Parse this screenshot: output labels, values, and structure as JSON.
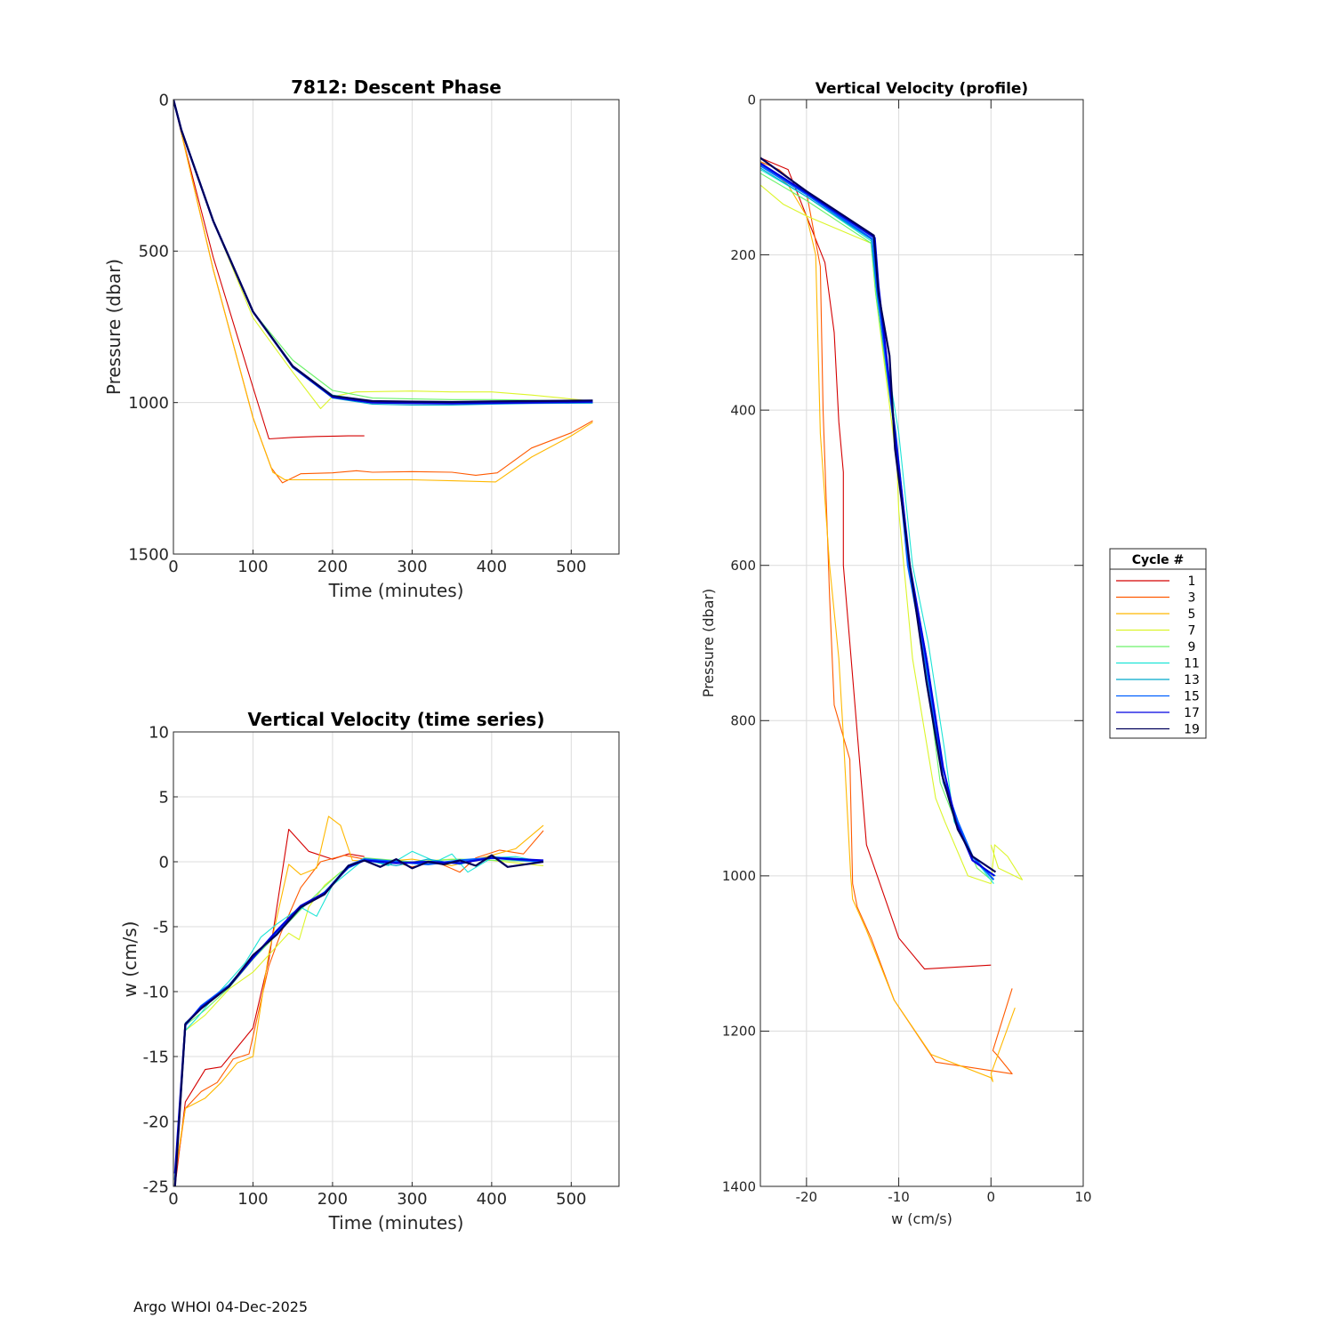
{
  "footer": "Argo WHOI 04-Dec-2025",
  "legend": {
    "title": "Cycle #",
    "entries": [
      {
        "label": "1",
        "color": "#d40000"
      },
      {
        "label": "3",
        "color": "#ff5a00"
      },
      {
        "label": "5",
        "color": "#ffb800"
      },
      {
        "label": "7",
        "color": "#dcf52a"
      },
      {
        "label": "9",
        "color": "#6cf26a"
      },
      {
        "label": "11",
        "color": "#1ce4d6"
      },
      {
        "label": "13",
        "color": "#00a9c9"
      },
      {
        "label": "15",
        "color": "#0060ff"
      },
      {
        "label": "17",
        "color": "#0000e0"
      },
      {
        "label": "19",
        "color": "#00005a"
      }
    ]
  },
  "chart_data": [
    {
      "id": "descent",
      "type": "line",
      "title": "7812: Descent Phase",
      "xlabel": "Time (minutes)",
      "ylabel": "Pressure (dbar)",
      "xlim": [
        0,
        560
      ],
      "ylim": [
        0,
        1500
      ],
      "y_reversed": true,
      "xticks": [
        0,
        100,
        200,
        300,
        400,
        500
      ],
      "yticks": [
        0,
        500,
        1000,
        1500
      ],
      "grid": true,
      "series": [
        {
          "name": "1",
          "x": [
            0,
            10,
            50,
            100,
            120,
            150,
            180,
            220,
            240
          ],
          "y": [
            0,
            110,
            520,
            950,
            1120,
            1115,
            1112,
            1110,
            1110
          ]
        },
        {
          "name": "3",
          "x": [
            0,
            10,
            50,
            100,
            123,
            137,
            160,
            200,
            230,
            250,
            300,
            350,
            380,
            407,
            450,
            500,
            527
          ],
          "y": [
            0,
            110,
            560,
            1050,
            1215,
            1265,
            1235,
            1232,
            1225,
            1230,
            1228,
            1230,
            1240,
            1232,
            1150,
            1100,
            1060
          ]
        },
        {
          "name": "5",
          "x": [
            0,
            10,
            50,
            100,
            125,
            140,
            200,
            300,
            350,
            405,
            450,
            500,
            527
          ],
          "y": [
            0,
            110,
            560,
            1050,
            1230,
            1255,
            1255,
            1255,
            1258,
            1262,
            1180,
            1110,
            1065
          ]
        },
        {
          "name": "7",
          "x": [
            0,
            10,
            50,
            100,
            150,
            185,
            200,
            230,
            300,
            350,
            400,
            450,
            527
          ],
          "y": [
            0,
            100,
            400,
            720,
            900,
            1020,
            980,
            965,
            962,
            965,
            965,
            975,
            995
          ]
        },
        {
          "name": "9",
          "x": [
            0,
            10,
            50,
            100,
            150,
            200,
            250,
            300,
            350,
            400,
            450,
            527
          ],
          "y": [
            0,
            100,
            400,
            700,
            860,
            960,
            985,
            988,
            990,
            990,
            992,
            995
          ]
        },
        {
          "name": "11",
          "x": [
            0,
            10,
            50,
            100,
            150,
            200,
            250,
            300,
            350,
            400,
            450,
            527
          ],
          "y": [
            0,
            100,
            400,
            700,
            880,
            975,
            995,
            998,
            1000,
            1000,
            1000,
            1000
          ]
        },
        {
          "name": "13",
          "x": [
            0,
            10,
            50,
            100,
            150,
            200,
            250,
            300,
            350,
            400,
            450,
            527
          ],
          "y": [
            0,
            100,
            400,
            700,
            885,
            985,
            1005,
            1008,
            1008,
            1005,
            1003,
            1002
          ]
        },
        {
          "name": "15",
          "x": [
            0,
            10,
            50,
            100,
            150,
            200,
            250,
            300,
            350,
            400,
            450,
            527
          ],
          "y": [
            0,
            100,
            400,
            700,
            880,
            980,
            998,
            1000,
            1002,
            1002,
            1000,
            998
          ]
        },
        {
          "name": "17",
          "x": [
            0,
            10,
            50,
            100,
            150,
            200,
            250,
            300,
            350,
            400,
            450,
            527
          ],
          "y": [
            0,
            100,
            400,
            700,
            882,
            982,
            1000,
            1002,
            1003,
            1001,
            1000,
            997
          ]
        },
        {
          "name": "19",
          "x": [
            0,
            10,
            50,
            100,
            150,
            200,
            250,
            300,
            350,
            400,
            450,
            527
          ],
          "y": [
            0,
            100,
            400,
            700,
            880,
            978,
            995,
            997,
            998,
            996,
            995,
            993
          ]
        }
      ]
    },
    {
      "id": "velocity_ts",
      "type": "line",
      "title": "Vertical Velocity (time series)",
      "xlabel": "Time (minutes)",
      "ylabel": "w (cm/s)",
      "xlim": [
        0,
        560
      ],
      "ylim": [
        -25,
        10
      ],
      "y_reversed": false,
      "xticks": [
        0,
        100,
        200,
        300,
        400,
        500
      ],
      "yticks": [
        -25,
        -20,
        -15,
        -10,
        -5,
        0,
        5,
        10
      ],
      "grid": true,
      "series": [
        {
          "name": "1",
          "x": [
            2,
            15,
            40,
            60,
            100,
            120,
            145,
            170,
            200,
            220,
            240
          ],
          "y": [
            -25,
            -18.5,
            -16,
            -15.8,
            -12.8,
            -7.5,
            2.5,
            0.8,
            0.2,
            0.6,
            0.4
          ]
        },
        {
          "name": "3",
          "x": [
            2,
            15,
            35,
            55,
            75,
            95,
            120,
            135,
            160,
            185,
            215,
            240,
            270,
            300,
            330,
            360,
            380,
            410,
            440,
            465
          ],
          "y": [
            -24.5,
            -19,
            -17.7,
            -17,
            -15.2,
            -14.8,
            -8,
            -5.5,
            -2,
            0,
            0.5,
            0.2,
            0.1,
            -0.4,
            0,
            -0.8,
            0.3,
            0.9,
            0.6,
            2.4
          ]
        },
        {
          "name": "5",
          "x": [
            2,
            15,
            40,
            60,
            80,
            100,
            120,
            145,
            160,
            180,
            195,
            210,
            225,
            260,
            300,
            350,
            400,
            430,
            465
          ],
          "y": [
            -24,
            -19,
            -18.2,
            -17,
            -15.5,
            -15,
            -7,
            -0.2,
            -1,
            -0.5,
            3.5,
            2.8,
            0.1,
            0,
            0.2,
            -0.3,
            0.5,
            1,
            2.8
          ]
        },
        {
          "name": "7",
          "x": [
            2,
            15,
            40,
            70,
            100,
            130,
            145,
            158,
            170,
            190,
            210,
            230,
            260,
            300,
            350,
            400,
            465
          ],
          "y": [
            -24,
            -13,
            -11.8,
            -9.8,
            -8.5,
            -6.5,
            -5.5,
            -6,
            -3.5,
            -1.8,
            -0.8,
            0,
            0.1,
            0,
            0.2,
            0.1,
            -0.3
          ]
        },
        {
          "name": "9",
          "x": [
            2,
            15,
            40,
            70,
            100,
            130,
            160,
            185,
            210,
            240,
            300,
            360,
            410,
            465
          ],
          "y": [
            -24,
            -12.6,
            -11.4,
            -9.7,
            -7.5,
            -5.6,
            -3.7,
            -2.2,
            -0.8,
            0.3,
            0,
            0.2,
            0.1,
            0
          ]
        },
        {
          "name": "11",
          "x": [
            2,
            15,
            30,
            50,
            70,
            90,
            110,
            130,
            160,
            180,
            200,
            240,
            270,
            300,
            330,
            350,
            370,
            400,
            430,
            465
          ],
          "y": [
            -24,
            -13,
            -12,
            -10.5,
            -9.2,
            -7.8,
            -5.8,
            -4.8,
            -3.5,
            -4.2,
            -1.8,
            0.2,
            -0.3,
            0.8,
            0,
            0.6,
            -0.8,
            0.3,
            0.4,
            0
          ]
        },
        {
          "name": "13",
          "x": [
            2,
            15,
            35,
            70,
            100,
            130,
            160,
            190,
            220,
            240,
            280,
            320,
            360,
            400,
            465
          ],
          "y": [
            -24,
            -12.4,
            -11.3,
            -9.6,
            -7.3,
            -5.4,
            -3.6,
            -2.3,
            -0.5,
            0.1,
            -0.3,
            0.2,
            -0.2,
            0.4,
            0.1
          ]
        },
        {
          "name": "15",
          "x": [
            2,
            15,
            35,
            70,
            100,
            130,
            160,
            190,
            220,
            240,
            280,
            320,
            360,
            400,
            465
          ],
          "y": [
            -24.5,
            -12.6,
            -11.1,
            -9.5,
            -7.4,
            -5.4,
            -3.5,
            -2.4,
            -0.3,
            0.2,
            0,
            -0.2,
            0.1,
            0.3,
            0
          ]
        },
        {
          "name": "17",
          "x": [
            2,
            15,
            35,
            70,
            100,
            130,
            160,
            190,
            220,
            240,
            280,
            320,
            360,
            400,
            465
          ],
          "y": [
            -24,
            -12.5,
            -11.2,
            -9.6,
            -7.4,
            -5.3,
            -3.4,
            -2.4,
            -0.4,
            0.1,
            -0.1,
            0,
            -0.1,
            0.3,
            0.1
          ]
        },
        {
          "name": "19",
          "x": [
            2,
            15,
            35,
            70,
            100,
            130,
            160,
            190,
            220,
            240,
            260,
            280,
            300,
            320,
            340,
            360,
            380,
            400,
            420,
            465
          ],
          "y": [
            -25,
            -12.5,
            -11.3,
            -9.6,
            -7.2,
            -5.6,
            -3.5,
            -2.5,
            -0.3,
            0.1,
            -0.4,
            0.2,
            -0.5,
            0,
            -0.2,
            0.1,
            -0.3,
            0.5,
            -0.4,
            0
          ]
        }
      ]
    },
    {
      "id": "velocity_profile",
      "type": "line",
      "title": "Vertical Velocity (profile)",
      "xlabel": "w (cm/s)",
      "ylabel": "Pressure (dbar)",
      "xlim": [
        -25,
        10
      ],
      "ylim": [
        0,
        1400
      ],
      "y_reversed": true,
      "xticks": [
        -20,
        -10,
        0,
        10
      ],
      "yticks": [
        0,
        200,
        400,
        600,
        800,
        1000,
        1200,
        1400
      ],
      "grid": true,
      "series": [
        {
          "name": "1",
          "x": [
            -25,
            -23,
            -22,
            -18,
            -17,
            -16.5,
            -16,
            -16,
            -15.3,
            -13.5,
            -10,
            -7.2,
            0
          ],
          "y": [
            75,
            85,
            90,
            210,
            300,
            415,
            480,
            600,
            700,
            960,
            1080,
            1120,
            1115
          ]
        },
        {
          "name": "3",
          "x": [
            -25,
            -23,
            -20,
            -18.5,
            -18.2,
            -17.5,
            -17,
            -15.3,
            -15,
            -14.5,
            -13,
            -10.5,
            -6,
            2.3,
            0.6,
            0.2,
            2.3
          ],
          "y": [
            80,
            90,
            120,
            215,
            400,
            640,
            780,
            850,
            1010,
            1040,
            1080,
            1160,
            1240,
            1255,
            1230,
            1225,
            1145
          ]
        },
        {
          "name": "5",
          "x": [
            -25,
            -22,
            -20,
            -19,
            -18.5,
            -17.5,
            -16.5,
            -16,
            -15.2,
            -15,
            -13.5,
            -10.5,
            -6.5,
            0,
            0.2,
            0,
            2.6
          ],
          "y": [
            80,
            110,
            150,
            200,
            430,
            600,
            720,
            820,
            1000,
            1030,
            1070,
            1160,
            1230,
            1260,
            1265,
            1255,
            1170
          ]
        },
        {
          "name": "7",
          "x": [
            -25,
            -22.5,
            -20,
            -13,
            -12.5,
            -10.2,
            -10,
            -8.5,
            -6,
            -5,
            -2.5,
            0,
            0.4,
            1.8,
            3.4,
            0.8,
            0
          ],
          "y": [
            110,
            135,
            150,
            185,
            250,
            470,
            530,
            720,
            900,
            930,
            1000,
            1010,
            960,
            975,
            1005,
            990,
            960
          ]
        },
        {
          "name": "9",
          "x": [
            -25,
            -20,
            -13,
            -12.5,
            -10.2,
            -9,
            -7.2,
            -5.5,
            -3.5,
            -1.5,
            0
          ],
          "y": [
            95,
            130,
            185,
            250,
            450,
            600,
            720,
            880,
            940,
            990,
            1005
          ]
        },
        {
          "name": "11",
          "x": [
            -25,
            -20,
            -13,
            -12.3,
            -10,
            -8.5,
            -6.8,
            -5,
            -4,
            -2,
            0.3
          ],
          "y": [
            90,
            125,
            182,
            260,
            430,
            600,
            700,
            840,
            930,
            975,
            1010
          ]
        },
        {
          "name": "13",
          "x": [
            -25,
            -20,
            -13,
            -12.4,
            -10.3,
            -8.8,
            -6.8,
            -5.2,
            -3.6,
            -2,
            0.5
          ],
          "y": [
            88,
            125,
            180,
            245,
            430,
            600,
            730,
            880,
            930,
            980,
            1000
          ]
        },
        {
          "name": "15",
          "x": [
            -25,
            -20,
            -12.8,
            -12.4,
            -10.3,
            -9,
            -7,
            -5.2,
            -3.6,
            -2,
            0.3
          ],
          "y": [
            85,
            122,
            180,
            240,
            440,
            600,
            730,
            875,
            930,
            975,
            1005
          ]
        },
        {
          "name": "17",
          "x": [
            -25,
            -20,
            -12.6,
            -12.2,
            -10.2,
            -8.8,
            -7,
            -5.2,
            -3.8,
            -2,
            0.4
          ],
          "y": [
            82,
            120,
            178,
            240,
            450,
            600,
            720,
            860,
            930,
            980,
            1000
          ]
        },
        {
          "name": "19",
          "x": [
            -25,
            -20,
            -12.7,
            -12.2,
            -11,
            -10.4,
            -8.8,
            -7,
            -5.3,
            -3.6,
            -2,
            0.5
          ],
          "y": [
            75,
            118,
            175,
            250,
            330,
            450,
            600,
            750,
            870,
            940,
            975,
            995
          ]
        }
      ]
    }
  ]
}
